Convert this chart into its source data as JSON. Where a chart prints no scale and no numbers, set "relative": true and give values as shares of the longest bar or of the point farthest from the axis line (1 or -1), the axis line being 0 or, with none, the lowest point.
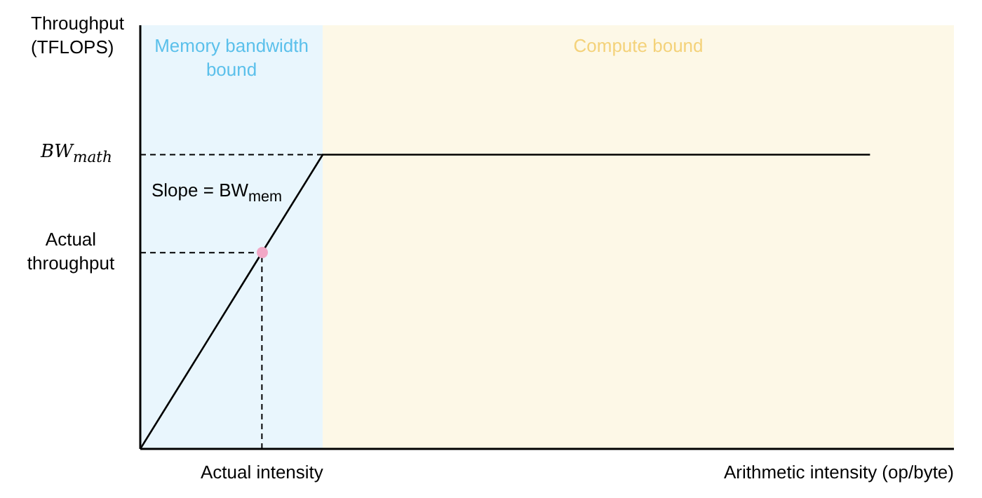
{
  "chart_data": {
    "type": "line",
    "xlabel": "Arithmetic intensity (op/byte)",
    "relative": true,
    "categories": [
      null,
      null,
      null,
      null,
      null,
      null,
      null,
      null,
      null,
      null,
      null,
      null,
      null
    ],
    "series": [
      {
        "color": "#000000",
        "values": [
          0,
          0.333,
          0.667,
          1,
          1,
          1,
          1,
          1,
          1,
          1,
          1,
          1,
          1
        ]
      }
    ],
    "ref_lines": [
      {
        "axis": "y",
        "value": 1,
        "label": "BW$_{math}$",
        "line_style": "dashed"
      },
      {
        "axis": "y",
        "value": 0.667,
        "label": "Actual throughput",
        "line_style": "dashed"
      }
    ],
    "annotations": [
      "Memory bandwidth bound",
      "Compute bound",
      "Actual intensity",
      "Slope = BW$_{mem}$",
      "Throughput (TFLOPS)"
    ],
    "marker": "none",
    "line_style": "solid"
  }
}
